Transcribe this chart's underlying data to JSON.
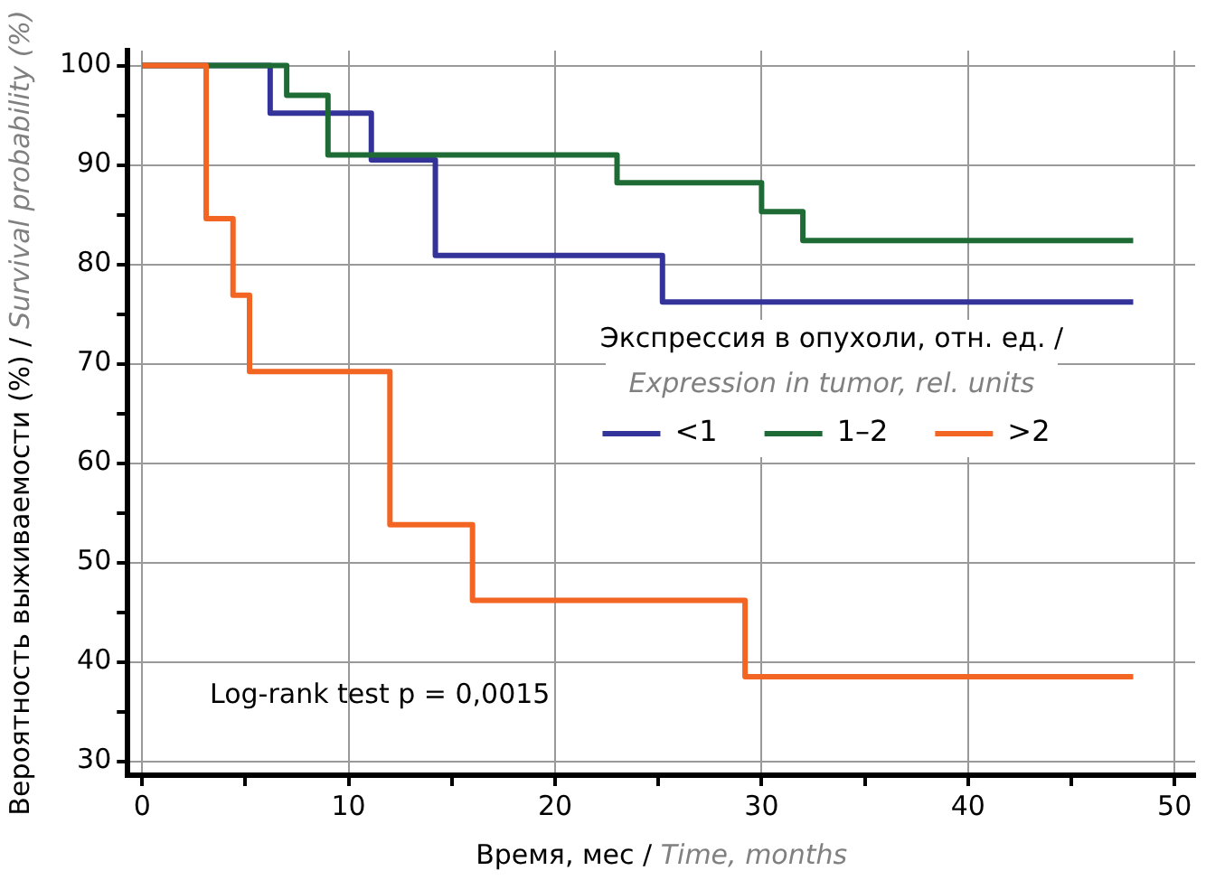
{
  "chart_data": {
    "type": "step",
    "xlabel": "Время, мес / Time, months",
    "ylabel": "Вероятность выживаемости (%) / Survival probability (%)",
    "legend_title": "Экспрессия в опухоли, отн. ед. / Expression in tumor, rel. units",
    "legend": "right",
    "grid": true,
    "marker": "none",
    "line_style": "solid",
    "xlim": [
      -0.7,
      51
    ],
    "ylim": [
      28.6,
      101.5
    ],
    "xticks": [
      0,
      {
        "value": 5,
        "label": null
      },
      10,
      {
        "value": 15,
        "label": null
      },
      20,
      {
        "value": 25,
        "label": null
      },
      30,
      {
        "value": 35,
        "label": null
      },
      40,
      {
        "value": 45,
        "label": null
      },
      50
    ],
    "yticks": [
      30,
      {
        "value": 35,
        "label": null
      },
      40,
      {
        "value": 45,
        "label": null
      },
      50,
      {
        "value": 55,
        "label": null
      },
      60,
      {
        "value": 65,
        "label": null
      },
      70,
      {
        "value": 75,
        "label": null
      },
      80,
      {
        "value": 85,
        "label": null
      },
      90,
      {
        "value": 95,
        "label": null
      },
      100
    ],
    "series": [
      {
        "name": "<1",
        "color": "#33339a",
        "x": [
          0,
          6.2,
          11.1,
          14.2,
          25.2,
          48
        ],
        "values": [
          100,
          95.2,
          90.5,
          80.9,
          76.2,
          76.2
        ]
      },
      {
        "name": "1–2",
        "color": "#1e6b35",
        "x": [
          0,
          7,
          9,
          23,
          30,
          32,
          48
        ],
        "values": [
          100,
          97,
          91,
          88.2,
          85.3,
          82.4,
          82.4
        ]
      },
      {
        "name": ">2",
        "color": "#f26522",
        "x": [
          0,
          3.1,
          4.4,
          5.2,
          12,
          16,
          29.2,
          48
        ],
        "values": [
          100,
          84.6,
          76.9,
          69.2,
          53.8,
          46.2,
          38.5,
          38.5
        ]
      }
    ],
    "annotations": [
      "Log-rank test p = 0,0015"
    ]
  }
}
